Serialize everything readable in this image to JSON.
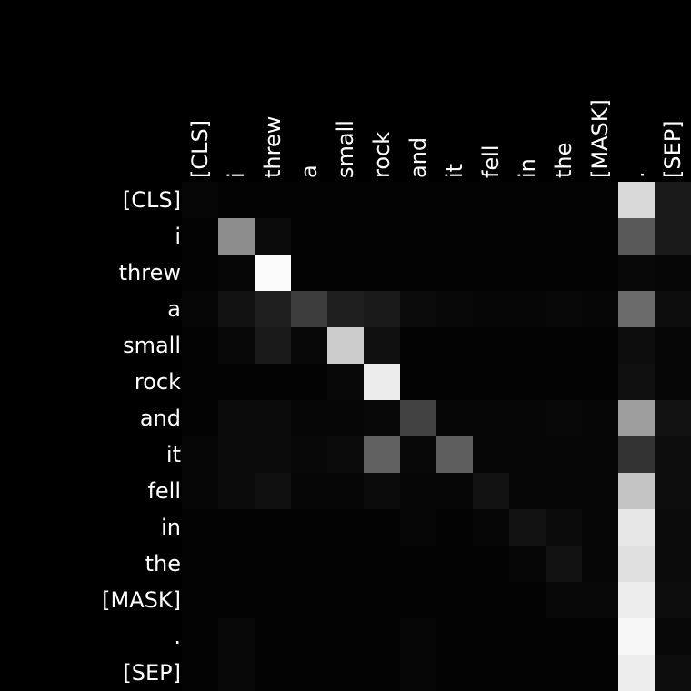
{
  "chart_data": {
    "type": "heatmap",
    "title": "",
    "xlabel": "",
    "ylabel": "",
    "colormap": "grayscale",
    "background": "#000000",
    "label_color": "#ffffff",
    "x_tokens": [
      "[CLS]",
      "i",
      "threw",
      "a",
      "small",
      "rock",
      "and",
      "it",
      "fell",
      "in",
      "the",
      "[MASK]",
      ".",
      "[SEP]"
    ],
    "y_tokens": [
      "[CLS]",
      "i",
      "threw",
      "a",
      "small",
      "rock",
      "and",
      "it",
      "fell",
      "in",
      "the",
      "[MASK]",
      ".",
      "[SEP]"
    ],
    "values": [
      [
        0.02,
        0.01,
        0.01,
        0.01,
        0.01,
        0.01,
        0.01,
        0.01,
        0.01,
        0.01,
        0.01,
        0.01,
        0.85,
        0.1
      ],
      [
        0.01,
        0.55,
        0.04,
        0.01,
        0.01,
        0.01,
        0.01,
        0.01,
        0.01,
        0.01,
        0.01,
        0.01,
        0.35,
        0.1
      ],
      [
        0.01,
        0.02,
        0.98,
        0.01,
        0.01,
        0.01,
        0.01,
        0.01,
        0.01,
        0.01,
        0.01,
        0.01,
        0.03,
        0.02
      ],
      [
        0.02,
        0.07,
        0.12,
        0.24,
        0.12,
        0.1,
        0.04,
        0.03,
        0.02,
        0.02,
        0.03,
        0.02,
        0.42,
        0.05
      ],
      [
        0.01,
        0.03,
        0.1,
        0.03,
        0.8,
        0.06,
        0.01,
        0.01,
        0.01,
        0.01,
        0.01,
        0.01,
        0.05,
        0.02
      ],
      [
        0.01,
        0.01,
        0.01,
        0.01,
        0.03,
        0.92,
        0.01,
        0.01,
        0.01,
        0.01,
        0.01,
        0.01,
        0.06,
        0.02
      ],
      [
        0.01,
        0.04,
        0.04,
        0.02,
        0.02,
        0.03,
        0.26,
        0.02,
        0.02,
        0.02,
        0.03,
        0.02,
        0.62,
        0.07
      ],
      [
        0.02,
        0.04,
        0.04,
        0.03,
        0.04,
        0.38,
        0.03,
        0.37,
        0.02,
        0.02,
        0.02,
        0.02,
        0.2,
        0.05
      ],
      [
        0.02,
        0.04,
        0.06,
        0.02,
        0.02,
        0.04,
        0.02,
        0.02,
        0.07,
        0.02,
        0.02,
        0.02,
        0.77,
        0.05
      ],
      [
        0.01,
        0.01,
        0.01,
        0.01,
        0.01,
        0.01,
        0.02,
        0.01,
        0.02,
        0.07,
        0.04,
        0.02,
        0.9,
        0.04
      ],
      [
        0.01,
        0.01,
        0.01,
        0.01,
        0.01,
        0.01,
        0.01,
        0.01,
        0.01,
        0.02,
        0.07,
        0.02,
        0.88,
        0.04
      ],
      [
        0.01,
        0.01,
        0.01,
        0.01,
        0.01,
        0.01,
        0.01,
        0.01,
        0.01,
        0.01,
        0.03,
        0.03,
        0.93,
        0.05
      ],
      [
        0.01,
        0.03,
        0.01,
        0.01,
        0.01,
        0.01,
        0.02,
        0.01,
        0.01,
        0.01,
        0.01,
        0.01,
        0.97,
        0.03
      ],
      [
        0.01,
        0.03,
        0.01,
        0.01,
        0.01,
        0.01,
        0.02,
        0.01,
        0.01,
        0.01,
        0.01,
        0.01,
        0.93,
        0.05
      ]
    ]
  }
}
